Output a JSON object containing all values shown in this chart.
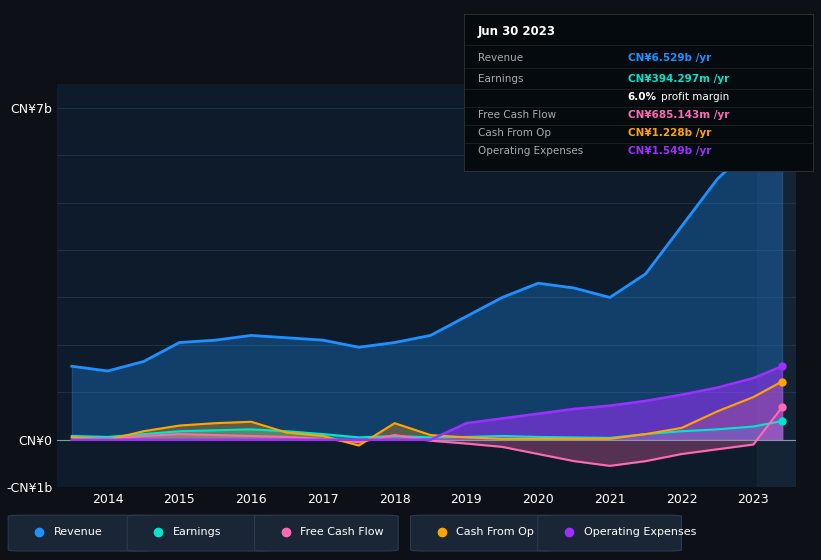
{
  "bg_color": "#0d1117",
  "plot_bg_color": "#0d1b2a",
  "title_date": "Jun 30 2023",
  "years": [
    2013.5,
    2014.0,
    2014.5,
    2015.0,
    2015.5,
    2016.0,
    2016.5,
    2017.0,
    2017.5,
    2018.0,
    2018.5,
    2019.0,
    2019.5,
    2020.0,
    2020.5,
    2021.0,
    2021.5,
    2022.0,
    2022.5,
    2023.0,
    2023.4
  ],
  "revenue": [
    1.55,
    1.45,
    1.65,
    2.05,
    2.1,
    2.2,
    2.15,
    2.1,
    1.95,
    2.05,
    2.2,
    2.6,
    3.0,
    3.3,
    3.2,
    3.0,
    3.5,
    4.5,
    5.5,
    6.2,
    6.529
  ],
  "earnings": [
    0.08,
    0.06,
    0.12,
    0.18,
    0.2,
    0.22,
    0.18,
    0.12,
    0.05,
    0.08,
    0.05,
    0.06,
    0.08,
    0.06,
    0.05,
    0.04,
    0.12,
    0.18,
    0.22,
    0.28,
    0.394
  ],
  "free_cash_flow": [
    0.05,
    0.02,
    0.08,
    0.12,
    0.1,
    0.08,
    0.06,
    0.02,
    -0.05,
    0.1,
    -0.02,
    -0.08,
    -0.15,
    -0.3,
    -0.45,
    -0.55,
    -0.45,
    -0.3,
    -0.2,
    -0.1,
    0.685
  ],
  "cash_from_op": [
    0.05,
    0.0,
    0.18,
    0.3,
    0.35,
    0.38,
    0.15,
    0.08,
    -0.12,
    0.35,
    0.1,
    0.05,
    0.02,
    0.02,
    0.02,
    0.02,
    0.12,
    0.25,
    0.6,
    0.9,
    1.228
  ],
  "op_expenses": [
    0.0,
    0.0,
    0.0,
    0.0,
    0.0,
    0.0,
    0.0,
    0.0,
    0.0,
    0.0,
    0.0,
    0.35,
    0.45,
    0.55,
    0.65,
    0.72,
    0.82,
    0.95,
    1.1,
    1.3,
    1.549
  ],
  "revenue_color": "#1e90ff",
  "earnings_color": "#00e5cc",
  "fcf_color": "#ff69b4",
  "cop_color": "#ffa500",
  "opex_color": "#9b30ff",
  "ylim": [
    -1.0,
    7.5
  ],
  "xlim": [
    2013.3,
    2023.6
  ],
  "yticks": [
    -1,
    0,
    7
  ],
  "ytick_labels": [
    "-CN¥1b",
    "CN¥0",
    "CN¥7b"
  ],
  "xtick_years": [
    2014,
    2015,
    2016,
    2017,
    2018,
    2019,
    2020,
    2021,
    2022,
    2023
  ],
  "panel_rows": [
    {
      "label": "Revenue",
      "value": "CN¥6.529b /yr",
      "color": "#1e90ff"
    },
    {
      "label": "Earnings",
      "value": "CN¥394.297m /yr",
      "color": "#00e5cc"
    },
    {
      "label": "",
      "value": "profit margin",
      "color": "#ffffff",
      "bold_prefix": "6.0%"
    },
    {
      "label": "Free Cash Flow",
      "value": "CN¥685.143m /yr",
      "color": "#ff69b4"
    },
    {
      "label": "Cash From Op",
      "value": "CN¥1.228b /yr",
      "color": "#ffa500"
    },
    {
      "label": "Operating Expenses",
      "value": "CN¥1.549b /yr",
      "color": "#9b30ff"
    }
  ],
  "legend_items": [
    {
      "label": "Revenue",
      "color": "#1e90ff"
    },
    {
      "label": "Earnings",
      "color": "#00e5cc"
    },
    {
      "label": "Free Cash Flow",
      "color": "#ff69b4"
    },
    {
      "label": "Cash From Op",
      "color": "#ffa500"
    },
    {
      "label": "Operating Expenses",
      "color": "#9b30ff"
    }
  ]
}
